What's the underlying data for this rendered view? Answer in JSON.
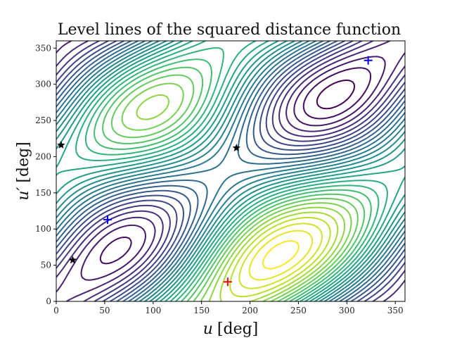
{
  "chart_data": {
    "type": "contour",
    "title": "Level lines of the squared distance function",
    "xlabel_var": "u",
    "xlabel_unit": "[deg]",
    "ylabel_var": "u′",
    "ylabel_unit": "[deg]",
    "xlim": [
      0,
      360
    ],
    "ylim": [
      0,
      360
    ],
    "xticks": [
      0,
      50,
      100,
      150,
      200,
      250,
      300,
      350
    ],
    "yticks": [
      0,
      50,
      100,
      150,
      200,
      250,
      300,
      350
    ],
    "grid": false,
    "colormap": "viridis",
    "contour_levels": 30,
    "minima_blue": [
      {
        "x": 53,
        "y": 113
      },
      {
        "x": 322,
        "y": 333
      }
    ],
    "minimum_red": {
      "x": 177,
      "y": 27
    },
    "saddle_points": [
      {
        "x": 5,
        "y": 216
      },
      {
        "x": 186,
        "y": 212
      },
      {
        "x": 17,
        "y": 57
      }
    ],
    "colors": {
      "blue_marker": "#0000ff",
      "red_marker": "#ff0000",
      "star_marker": "#000000",
      "axes": "#000000"
    }
  }
}
